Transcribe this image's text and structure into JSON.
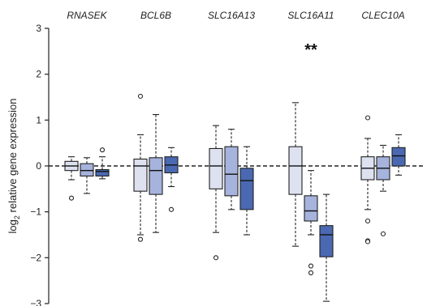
{
  "chart_data": {
    "type": "boxplot",
    "title": "",
    "ylabel": "log2 relative gene expression",
    "ylabel_main": "log",
    "ylabel_sub": "2",
    "ylabel_rest": " relative gene expression",
    "ylim": [
      -3,
      3
    ],
    "yticks": [
      -3,
      -2,
      -1,
      0,
      1,
      2,
      3
    ],
    "ytick_labels": [
      "−3",
      "−2",
      "−1",
      "0",
      "1",
      "2",
      "3"
    ],
    "reference_line": 0,
    "grid": false,
    "colors": [
      "#dde1f0",
      "#a6b3dc",
      "#4a69b2"
    ],
    "groups": [
      {
        "gene": "RNASEK",
        "significance": "",
        "boxes": [
          {
            "whislo": -0.3,
            "q1": -0.1,
            "med": 0.0,
            "q3": 0.1,
            "whishi": 0.2,
            "fliers": [
              -0.7
            ]
          },
          {
            "whislo": -0.6,
            "q1": -0.22,
            "med": -0.1,
            "q3": 0.05,
            "whishi": 0.18,
            "fliers": []
          },
          {
            "whislo": -0.28,
            "q1": -0.22,
            "med": -0.12,
            "q3": -0.08,
            "whishi": 0.2,
            "fliers": [
              0.35
            ]
          }
        ]
      },
      {
        "gene": "BCL6B",
        "significance": "",
        "boxes": [
          {
            "whislo": -1.5,
            "q1": -0.55,
            "med": 0.0,
            "q3": 0.15,
            "whishi": 0.68,
            "fliers": [
              1.52,
              -1.6
            ]
          },
          {
            "whislo": -1.45,
            "q1": -0.62,
            "med": -0.1,
            "q3": 0.18,
            "whishi": 1.12,
            "fliers": []
          },
          {
            "whislo": -0.45,
            "q1": -0.15,
            "med": 0.02,
            "q3": 0.2,
            "whishi": 0.4,
            "fliers": [
              -0.95
            ]
          }
        ]
      },
      {
        "gene": "SLC16A13",
        "significance": "",
        "boxes": [
          {
            "whislo": -1.45,
            "q1": -0.5,
            "med": 0.0,
            "q3": 0.38,
            "whishi": 0.88,
            "fliers": [
              -2.0
            ]
          },
          {
            "whislo": -0.95,
            "q1": -0.65,
            "med": -0.18,
            "q3": 0.42,
            "whishi": 0.8,
            "fliers": []
          },
          {
            "whislo": -1.5,
            "q1": -0.95,
            "med": -0.32,
            "q3": -0.05,
            "whishi": 0.42,
            "fliers": []
          }
        ]
      },
      {
        "gene": "SLC16A11",
        "significance": "**",
        "boxes": [
          {
            "whislo": -1.75,
            "q1": -0.62,
            "med": 0.0,
            "q3": 0.42,
            "whishi": 1.38,
            "fliers": []
          },
          {
            "whislo": -1.5,
            "q1": -1.2,
            "med": -0.98,
            "q3": -0.65,
            "whishi": -0.1,
            "fliers": [
              -2.18,
              -2.33
            ]
          },
          {
            "whislo": -2.95,
            "q1": -1.98,
            "med": -1.5,
            "q3": -1.3,
            "whishi": -0.62,
            "fliers": []
          }
        ]
      },
      {
        "gene": "CLEC10A",
        "significance": "",
        "boxes": [
          {
            "whislo": -0.95,
            "q1": -0.3,
            "med": -0.05,
            "q3": 0.2,
            "whishi": 0.6,
            "fliers": [
              1.05,
              -1.2,
              -1.63,
              -1.65
            ]
          },
          {
            "whislo": -0.55,
            "q1": -0.3,
            "med": -0.05,
            "q3": 0.2,
            "whishi": 0.45,
            "fliers": [
              -1.48
            ]
          },
          {
            "whislo": -0.2,
            "q1": 0.0,
            "med": 0.22,
            "q3": 0.4,
            "whishi": 0.68,
            "fliers": []
          }
        ]
      }
    ]
  }
}
